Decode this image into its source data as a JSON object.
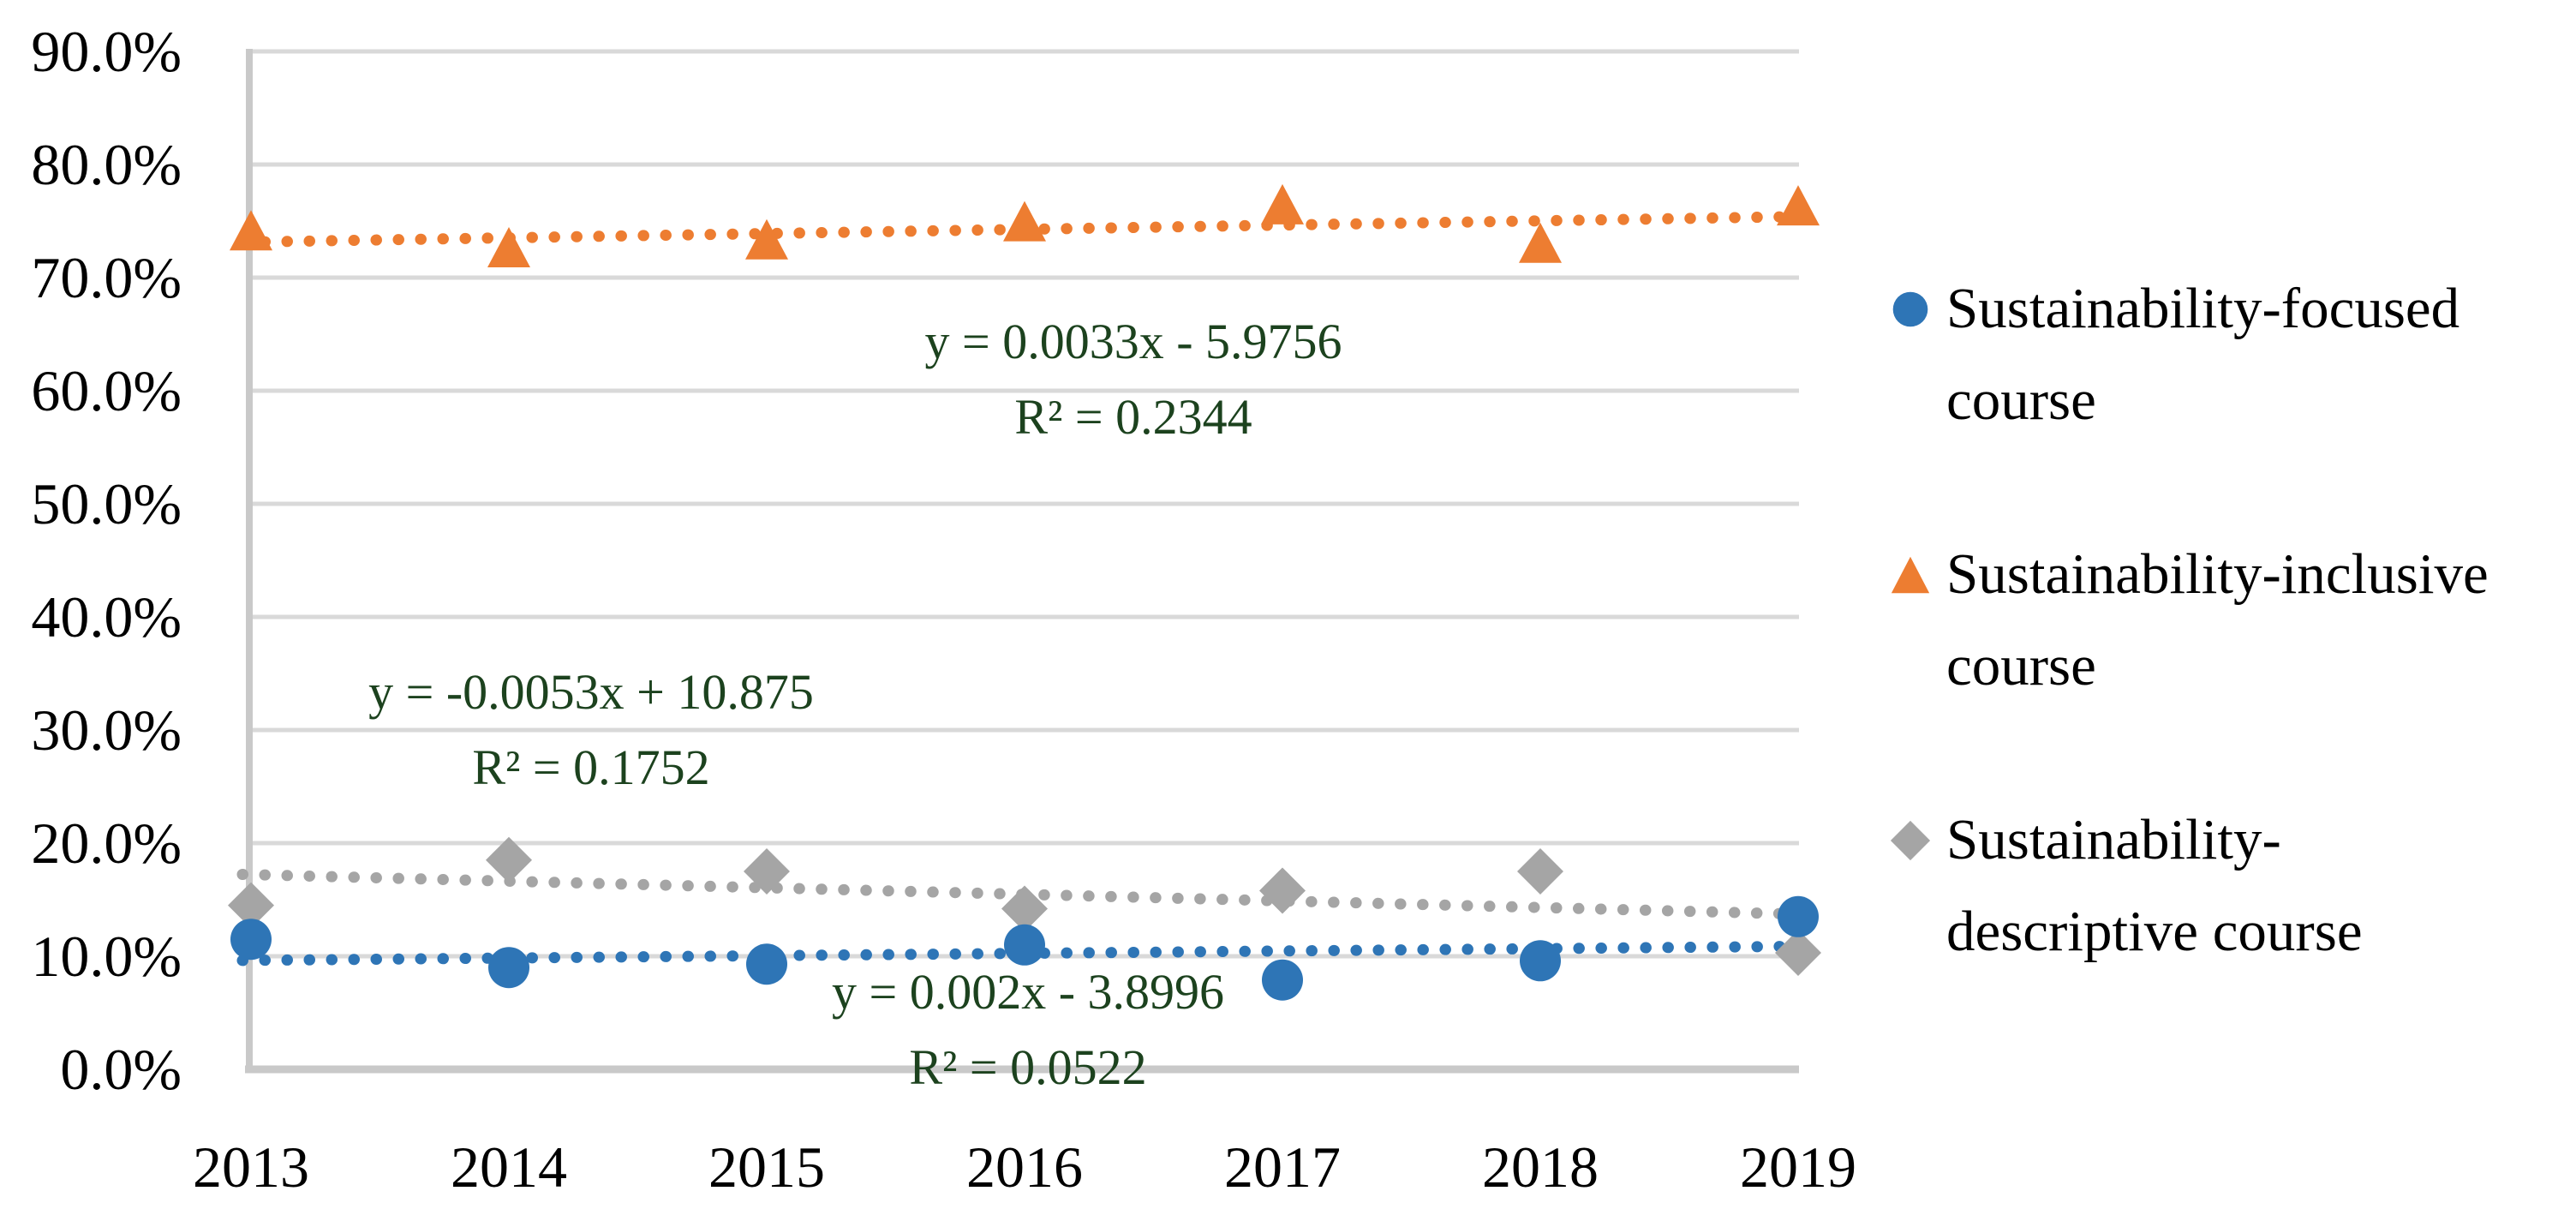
{
  "chart_data": {
    "type": "scatter",
    "title": "",
    "xlabel": "",
    "ylabel": "",
    "categories": [
      "2013",
      "2014",
      "2015",
      "2016",
      "2017",
      "2018",
      "2019"
    ],
    "y_ticks": [
      "0.0%",
      "10.0%",
      "20.0%",
      "30.0%",
      "40.0%",
      "50.0%",
      "60.0%",
      "70.0%",
      "80.0%",
      "90.0%"
    ],
    "ylim": [
      0,
      90
    ],
    "grid": true,
    "legend_position": "right",
    "series": [
      {
        "name": "Sustainability-focused course",
        "legend_lines": [
          "Sustainability-focused",
          "course"
        ],
        "marker": "circle",
        "color": "#2E75B6",
        "values": [
          11.5,
          9.0,
          9.3,
          11.0,
          7.9,
          9.6,
          13.5
        ],
        "trendline": {
          "style": "dotted",
          "equation": "y = 0.002x - 3.8996",
          "r_squared": "R² = 0.0522"
        }
      },
      {
        "name": "Sustainability-inclusive course",
        "legend_lines": [
          "Sustainability-inclusive",
          "course"
        ],
        "marker": "triangle",
        "color": "#ED7D31",
        "values": [
          74.0,
          72.5,
          73.2,
          74.8,
          76.3,
          72.9,
          76.2
        ],
        "trendline": {
          "style": "dotted",
          "equation": "y = 0.0033x - 5.9756",
          "r_squared": "R² = 0.2344"
        }
      },
      {
        "name": "Sustainability-descriptive course",
        "legend_lines": [
          "Sustainability-",
          "descriptive course"
        ],
        "marker": "diamond",
        "color": "#A5A5A5",
        "values": [
          14.5,
          18.5,
          17.5,
          14.2,
          15.8,
          17.5,
          10.3
        ],
        "trendline": {
          "style": "dotted",
          "equation": "y = -0.0053x + 10.875",
          "r_squared": "R² = 0.1752"
        }
      }
    ],
    "colors": {
      "equation_text": "#1C421E",
      "gridline": "#D9D9D9",
      "axis_line": "#C9C9C9",
      "label_text": "#000000",
      "background": "#FFFFFF"
    }
  }
}
